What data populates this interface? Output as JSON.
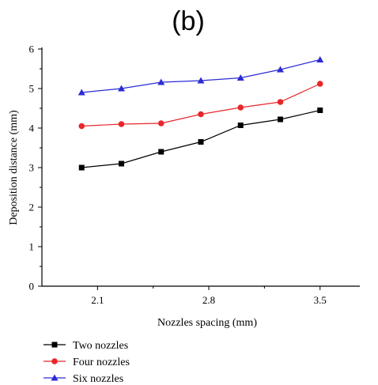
{
  "chart_data": {
    "panel_label": "(b)",
    "type": "line",
    "title": "",
    "xlabel": "Nozzles spacing (mm)",
    "ylabel": "Deposition distance (mm)",
    "x": [
      2.0,
      2.25,
      2.5,
      2.75,
      3.0,
      3.25,
      3.5
    ],
    "xticks": [
      "2.1",
      "2.8",
      "3.5"
    ],
    "xtick_values": [
      2.1,
      2.8,
      3.5
    ],
    "yticks": [
      "0",
      "1",
      "2",
      "3",
      "4",
      "5",
      "6"
    ],
    "ylim": [
      0,
      6
    ],
    "xlim": [
      1.75,
      3.75
    ],
    "grid": false,
    "legend_position": "bottom-left",
    "series": [
      {
        "name": "Two nozzles",
        "color": "#000000",
        "marker": "square",
        "values": [
          3.0,
          3.1,
          3.4,
          3.65,
          4.07,
          4.22,
          4.45
        ]
      },
      {
        "name": "Four nozzles",
        "color": "#e8262a",
        "marker": "circle",
        "values": [
          4.05,
          4.1,
          4.12,
          4.35,
          4.52,
          4.66,
          5.12
        ]
      },
      {
        "name": "Six nozzles",
        "color": "#2b2bd6",
        "marker": "triangle",
        "values": [
          4.9,
          5.0,
          5.16,
          5.2,
          5.27,
          5.48,
          5.73
        ]
      }
    ]
  }
}
